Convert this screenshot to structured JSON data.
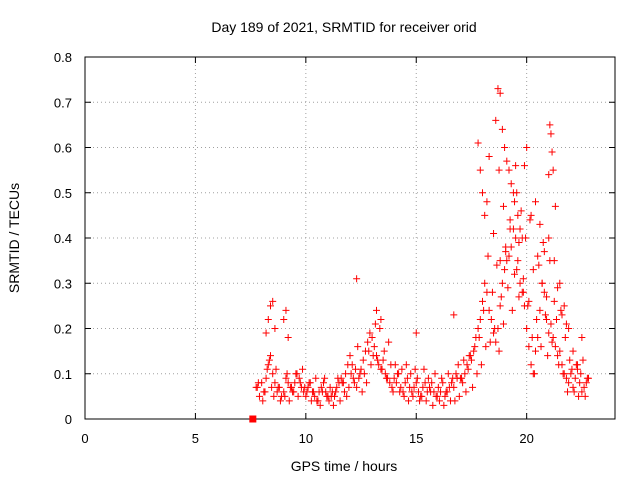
{
  "chart_data": {
    "type": "scatter",
    "title": "Day 189 of 2021, SRMTID for receiver orid",
    "xlabel": "GPS time / hours",
    "ylabel": "SRMTID / TECUs",
    "xlim": [
      0,
      24
    ],
    "ylim": [
      0,
      0.8
    ],
    "xticks": [
      0,
      5,
      10,
      15,
      20
    ],
    "yticks": [
      0,
      0.1,
      0.2,
      0.3,
      0.4,
      0.5,
      0.6,
      0.7,
      0.8
    ],
    "xtick_labels": [
      "0",
      "5",
      "10",
      "15",
      "20"
    ],
    "ytick_labels": [
      "0",
      "0.1",
      "0.2",
      "0.3",
      "0.4",
      "0.5",
      "0.6",
      "0.7",
      "0.8"
    ],
    "grid": true,
    "marker": "plus",
    "color": "#ff0000",
    "square_marker": {
      "x": 7.6,
      "y": 0.0
    },
    "series": [
      {
        "name": "SRMTID",
        "x": [
          7.8,
          7.9,
          8.0,
          8.1,
          8.2,
          8.3,
          8.4,
          8.5,
          8.6,
          8.7,
          8.8,
          8.9,
          9.0,
          9.1,
          9.2,
          9.3,
          9.4,
          9.5,
          9.6,
          9.7,
          9.8,
          9.9,
          10.0,
          10.1,
          10.2,
          10.3,
          10.4,
          10.5,
          10.6,
          10.7,
          10.8,
          10.9,
          11.0,
          11.1,
          11.2,
          11.3,
          11.4,
          11.5,
          11.6,
          11.7,
          11.8,
          11.9,
          12.0,
          12.1,
          12.2,
          12.3,
          12.4,
          12.5,
          12.6,
          12.7,
          12.8,
          12.9,
          13.0,
          13.1,
          13.2,
          13.3,
          13.4,
          13.5,
          13.6,
          13.7,
          13.8,
          13.9,
          14.0,
          14.1,
          14.2,
          14.3,
          14.4,
          14.5,
          14.6,
          14.7,
          14.8,
          14.9,
          15.0,
          15.1,
          15.2,
          15.3,
          15.4,
          15.5,
          15.6,
          15.7,
          15.8,
          15.9,
          16.0,
          16.1,
          16.2,
          16.3,
          16.4,
          16.5,
          16.6,
          16.7,
          16.8,
          16.9,
          17.0,
          17.1,
          17.2,
          17.3,
          17.4,
          17.5,
          17.6,
          17.7,
          17.8,
          17.9,
          18.0,
          18.1,
          18.2,
          18.3,
          18.4,
          18.5,
          18.6,
          18.7,
          18.8,
          18.9,
          19.0,
          19.1,
          19.2,
          19.3,
          19.4,
          19.5,
          19.6,
          19.7,
          19.8,
          19.9,
          20.0,
          20.1,
          20.2,
          20.3,
          20.4,
          20.5,
          20.6,
          20.7,
          20.8,
          20.9,
          21.0,
          21.1,
          21.2,
          21.3,
          21.4,
          21.5,
          21.6,
          21.7,
          21.8,
          21.9,
          22.0,
          22.1,
          22.2,
          22.3,
          22.4,
          22.5,
          22.6,
          22.7,
          22.8,
          7.75,
          7.85,
          8.05,
          8.15,
          8.25,
          8.35,
          8.45,
          8.55,
          8.65,
          8.75,
          8.85,
          9.05,
          9.15,
          9.25,
          9.35,
          9.45,
          9.55,
          9.65,
          9.75,
          9.85,
          9.95,
          10.05,
          10.15,
          10.25,
          10.35,
          10.45,
          10.55,
          10.65,
          10.75,
          10.85,
          10.95,
          11.05,
          11.15,
          11.25,
          11.35,
          11.45,
          11.55,
          11.65,
          11.75,
          11.85,
          11.95,
          12.05,
          12.15,
          12.25,
          12.35,
          12.45,
          12.55,
          12.65,
          12.75,
          12.85,
          12.95,
          13.05,
          13.15,
          13.25,
          13.35,
          13.45,
          13.55,
          13.65,
          13.75,
          13.85,
          13.95,
          14.05,
          14.15,
          14.25,
          14.35,
          14.45,
          14.55,
          14.65,
          14.75,
          14.85,
          14.95,
          15.05,
          15.15,
          15.25,
          15.35,
          15.45,
          15.55,
          15.65,
          15.75,
          15.85,
          15.95,
          16.05,
          16.15,
          16.25,
          16.35,
          16.45,
          16.55,
          16.65,
          16.75,
          16.85,
          16.95,
          17.05,
          17.15,
          17.25,
          17.35,
          17.45,
          17.55,
          17.65,
          17.75,
          17.85,
          17.95,
          18.05,
          18.15,
          18.25,
          18.35,
          18.45,
          18.55,
          18.65,
          18.75,
          18.85,
          18.95,
          19.05,
          19.15,
          19.25,
          19.35,
          19.45,
          19.55,
          19.65,
          19.75,
          19.85,
          19.95,
          20.05,
          20.15,
          20.25,
          20.35,
          20.45,
          20.55,
          20.65,
          20.75,
          20.85,
          20.95,
          21.05,
          21.15,
          21.25,
          21.35,
          21.45,
          21.55,
          21.65,
          21.75,
          21.85,
          21.95,
          22.05,
          22.15,
          22.25,
          22.35,
          22.45,
          22.55,
          22.65,
          22.75,
          8.2,
          8.3,
          8.4,
          8.5,
          8.6,
          9.0,
          9.1,
          9.2,
          12.3,
          13.2,
          13.4,
          15.0,
          16.7,
          17.8,
          17.9,
          18.0,
          18.1,
          18.2,
          18.3,
          18.6,
          18.7,
          18.8,
          18.9,
          19.0,
          19.1,
          19.2,
          19.3,
          19.4,
          19.5,
          19.6,
          19.7,
          19.8,
          19.9,
          20.0,
          20.2,
          20.4,
          20.6,
          20.8,
          21.0,
          21.05,
          21.1,
          21.15,
          21.2,
          21.3,
          21.5,
          21.7,
          21.9,
          22.1,
          22.3,
          22.5,
          18.5,
          18.75,
          18.8,
          18.95,
          19.05,
          19.25,
          19.45,
          19.55,
          19.65,
          19.85,
          20.1,
          20.3,
          20.5,
          20.7,
          20.9,
          21.0,
          21.25,
          21.4,
          21.6,
          21.8
        ],
        "y": [
          0.07,
          0.05,
          0.08,
          0.06,
          0.09,
          0.12,
          0.14,
          0.1,
          0.08,
          0.06,
          0.07,
          0.05,
          0.06,
          0.09,
          0.08,
          0.07,
          0.06,
          0.08,
          0.1,
          0.09,
          0.07,
          0.06,
          0.05,
          0.07,
          0.08,
          0.06,
          0.05,
          0.04,
          0.06,
          0.07,
          0.08,
          0.06,
          0.05,
          0.07,
          0.06,
          0.05,
          0.07,
          0.08,
          0.09,
          0.08,
          0.1,
          0.12,
          0.14,
          0.12,
          0.08,
          0.07,
          0.09,
          0.11,
          0.13,
          0.15,
          0.17,
          0.19,
          0.18,
          0.16,
          0.14,
          0.12,
          0.11,
          0.13,
          0.1,
          0.09,
          0.08,
          0.07,
          0.09,
          0.08,
          0.1,
          0.07,
          0.06,
          0.08,
          0.09,
          0.07,
          0.06,
          0.07,
          0.08,
          0.06,
          0.05,
          0.07,
          0.08,
          0.06,
          0.07,
          0.08,
          0.06,
          0.05,
          0.07,
          0.06,
          0.08,
          0.05,
          0.06,
          0.07,
          0.08,
          0.07,
          0.1,
          0.12,
          0.09,
          0.08,
          0.1,
          0.12,
          0.14,
          0.13,
          0.15,
          0.18,
          0.2,
          0.22,
          0.26,
          0.3,
          0.28,
          0.24,
          0.22,
          0.19,
          0.17,
          0.2,
          0.25,
          0.3,
          0.33,
          0.35,
          0.36,
          0.38,
          0.42,
          0.4,
          0.35,
          0.3,
          0.28,
          0.25,
          0.2,
          0.16,
          0.12,
          0.1,
          0.15,
          0.18,
          0.24,
          0.3,
          0.28,
          0.22,
          0.19,
          0.21,
          0.18,
          0.16,
          0.14,
          0.15,
          0.12,
          0.1,
          0.09,
          0.08,
          0.1,
          0.07,
          0.09,
          0.11,
          0.08,
          0.06,
          0.07,
          0.08,
          0.09,
          0.07,
          0.08,
          0.04,
          0.06,
          0.11,
          0.13,
          0.07,
          0.05,
          0.11,
          0.07,
          0.04,
          0.05,
          0.1,
          0.04,
          0.07,
          0.06,
          0.1,
          0.05,
          0.08,
          0.11,
          0.07,
          0.06,
          0.08,
          0.04,
          0.06,
          0.09,
          0.04,
          0.03,
          0.06,
          0.09,
          0.05,
          0.04,
          0.05,
          0.03,
          0.06,
          0.09,
          0.04,
          0.08,
          0.06,
          0.05,
          0.07,
          0.1,
          0.09,
          0.11,
          0.16,
          0.1,
          0.06,
          0.1,
          0.08,
          0.15,
          0.12,
          0.14,
          0.21,
          0.13,
          0.2,
          0.11,
          0.15,
          0.09,
          0.17,
          0.12,
          0.06,
          0.12,
          0.1,
          0.06,
          0.11,
          0.05,
          0.12,
          0.04,
          0.1,
          0.05,
          0.11,
          0.09,
          0.04,
          0.05,
          0.11,
          0.04,
          0.09,
          0.06,
          0.03,
          0.1,
          0.05,
          0.04,
          0.09,
          0.03,
          0.06,
          0.1,
          0.04,
          0.09,
          0.04,
          0.09,
          0.05,
          0.09,
          0.13,
          0.06,
          0.11,
          0.14,
          0.07,
          0.16,
          0.1,
          0.18,
          0.12,
          0.24,
          0.16,
          0.36,
          0.17,
          0.28,
          0.2,
          0.34,
          0.15,
          0.27,
          0.21,
          0.37,
          0.29,
          0.44,
          0.24,
          0.32,
          0.5,
          0.27,
          0.46,
          0.31,
          0.4,
          0.25,
          0.44,
          0.18,
          0.1,
          0.22,
          0.34,
          0.16,
          0.39,
          0.23,
          0.14,
          0.35,
          0.17,
          0.26,
          0.22,
          0.12,
          0.24,
          0.1,
          0.18,
          0.06,
          0.13,
          0.11,
          0.06,
          0.12,
          0.05,
          0.1,
          0.13,
          0.05,
          0.09,
          0.19,
          0.22,
          0.25,
          0.26,
          0.2,
          0.22,
          0.24,
          0.18,
          0.31,
          0.24,
          0.22,
          0.19,
          0.23,
          0.61,
          0.55,
          0.5,
          0.45,
          0.48,
          0.58,
          0.66,
          0.73,
          0.72,
          0.64,
          0.6,
          0.57,
          0.55,
          0.52,
          0.5,
          0.56,
          0.45,
          0.42,
          0.4,
          0.56,
          0.6,
          0.45,
          0.48,
          0.43,
          0.37,
          0.54,
          0.65,
          0.63,
          0.59,
          0.55,
          0.47,
          0.3,
          0.25,
          0.2,
          0.15,
          0.12,
          0.18,
          0.41,
          0.55,
          0.35,
          0.47,
          0.38,
          0.42,
          0.48,
          0.33,
          0.39,
          0.28,
          0.26,
          0.33,
          0.36,
          0.3,
          0.27,
          0.4,
          0.35,
          0.29,
          0.23,
          0.21
        ]
      }
    ]
  }
}
